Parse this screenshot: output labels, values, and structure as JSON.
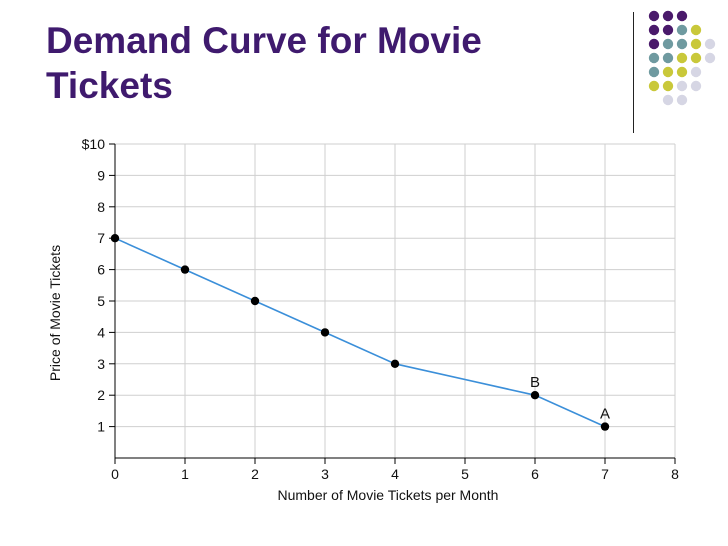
{
  "slide": {
    "title_line1": "Demand Curve for Movie",
    "title_line2": "Tickets"
  },
  "colors": {
    "title": "#3f1a6e",
    "line": "#3b8fd9",
    "point": "#000000",
    "grid": "#cfcfcf",
    "dot_purple": "#4a1a6b",
    "dot_teal": "#6f9aa0",
    "dot_yellow": "#c9c83a",
    "dot_lavender": "#d6d6e4"
  },
  "decoration": {
    "dot_grid": [
      [
        "dot_purple",
        "dot_purple",
        "dot_purple",
        null,
        null
      ],
      [
        "dot_purple",
        "dot_purple",
        "dot_teal",
        "dot_yellow",
        null
      ],
      [
        "dot_purple",
        "dot_teal",
        "dot_teal",
        "dot_yellow",
        "dot_lavender"
      ],
      [
        "dot_teal",
        "dot_teal",
        "dot_yellow",
        "dot_yellow",
        "dot_lavender"
      ],
      [
        "dot_teal",
        "dot_yellow",
        "dot_yellow",
        "dot_lavender",
        null
      ],
      [
        "dot_yellow",
        "dot_yellow",
        "dot_lavender",
        "dot_lavender",
        null
      ],
      [
        null,
        "dot_lavender",
        "dot_lavender",
        null,
        null
      ]
    ]
  },
  "chart_data": {
    "type": "line",
    "title": "",
    "xlabel": "Number of Movie Tickets per Month",
    "ylabel": "Price of Movie Tickets",
    "xlim": [
      0,
      8
    ],
    "ylim": [
      0,
      10
    ],
    "x_ticks": [
      0,
      1,
      2,
      3,
      4,
      5,
      6,
      7,
      8
    ],
    "x_tick_labels": [
      "0",
      "1",
      "2",
      "3",
      "4",
      "5",
      "6",
      "7",
      "8"
    ],
    "y_ticks": [
      1,
      2,
      3,
      4,
      5,
      6,
      7,
      8,
      9,
      10
    ],
    "y_tick_labels": [
      "1",
      "2",
      "3",
      "4",
      "5",
      "6",
      "7",
      "8",
      "9",
      "$10"
    ],
    "grid": true,
    "series": [
      {
        "points": [
          {
            "x": 0,
            "y": 7
          },
          {
            "x": 1,
            "y": 6
          },
          {
            "x": 2,
            "y": 5
          },
          {
            "x": 3,
            "y": 4
          },
          {
            "x": 4,
            "y": 3
          },
          {
            "x": 6,
            "y": 2
          },
          {
            "x": 7,
            "y": 1
          }
        ]
      }
    ],
    "annotations": [
      {
        "text": "B",
        "x": 6,
        "y": 2
      },
      {
        "text": "A",
        "x": 7,
        "y": 1
      }
    ]
  }
}
